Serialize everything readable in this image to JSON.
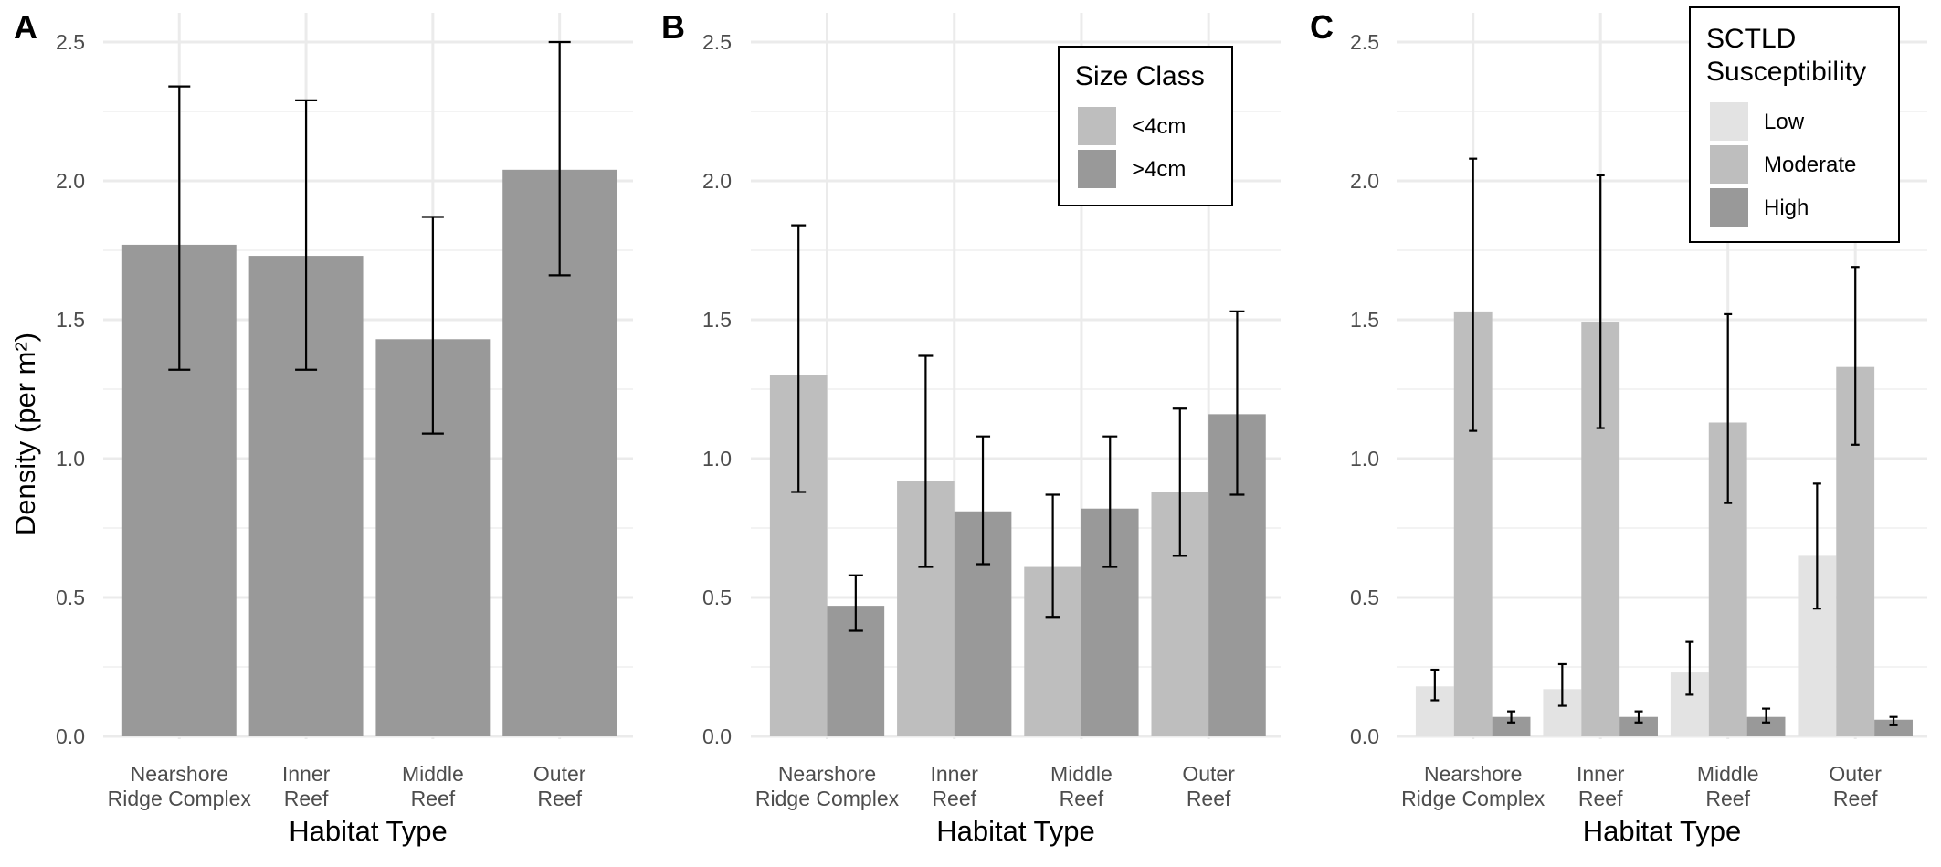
{
  "figure": {
    "y_axis_title": "Density (per m²)",
    "x_axis_title": "Habitat Type"
  },
  "chart_data": [
    {
      "type": "bar",
      "panel_label": "A",
      "xlabel": "Habitat Type",
      "ylabel": "Density (per m²)",
      "ylim": [
        0,
        2.5
      ],
      "yticks": [
        "0.0",
        "0.5",
        "1.0",
        "1.5",
        "2.0",
        "2.5"
      ],
      "grid": true,
      "categories": [
        [
          "Nearshore",
          "Ridge Complex"
        ],
        [
          "Inner",
          "Reef"
        ],
        [
          "Middle",
          "Reef"
        ],
        [
          "Outer",
          "Reef"
        ]
      ],
      "series": [
        {
          "name": "",
          "color": "#999999",
          "values": [
            1.77,
            1.73,
            1.43,
            2.04
          ],
          "err_low": [
            1.32,
            1.32,
            1.09,
            1.66
          ],
          "err_high": [
            2.34,
            2.29,
            1.87,
            2.5
          ]
        }
      ]
    },
    {
      "type": "bar",
      "panel_label": "B",
      "xlabel": "Habitat Type",
      "ylabel": "",
      "ylim": [
        0,
        2.5
      ],
      "yticks": [
        "0.0",
        "0.5",
        "1.0",
        "1.5",
        "2.0",
        "2.5"
      ],
      "grid": true,
      "legend": {
        "title": [
          "Size Class"
        ],
        "position": "top-right"
      },
      "categories": [
        [
          "Nearshore",
          "Ridge Complex"
        ],
        [
          "Inner",
          "Reef"
        ],
        [
          "Middle",
          "Reef"
        ],
        [
          "Outer",
          "Reef"
        ]
      ],
      "series": [
        {
          "name": "<4cm",
          "color": "#bebebe",
          "values": [
            1.3,
            0.92,
            0.61,
            0.88
          ],
          "err_low": [
            0.88,
            0.61,
            0.43,
            0.65
          ],
          "err_high": [
            1.84,
            1.37,
            0.87,
            1.18
          ]
        },
        {
          "name": ">4cm",
          "color": "#999999",
          "values": [
            0.47,
            0.81,
            0.82,
            1.16
          ],
          "err_low": [
            0.38,
            0.62,
            0.61,
            0.87
          ],
          "err_high": [
            0.58,
            1.08,
            1.08,
            1.53
          ]
        }
      ]
    },
    {
      "type": "bar",
      "panel_label": "C",
      "xlabel": "Habitat Type",
      "ylabel": "",
      "ylim": [
        0,
        2.5
      ],
      "yticks": [
        "0.0",
        "0.5",
        "1.0",
        "1.5",
        "2.0",
        "2.5"
      ],
      "grid": true,
      "legend": {
        "title": [
          "SCTLD",
          "Susceptibility"
        ],
        "position": "top-right"
      },
      "categories": [
        [
          "Nearshore",
          "Ridge Complex"
        ],
        [
          "Inner",
          "Reef"
        ],
        [
          "Middle",
          "Reef"
        ],
        [
          "Outer",
          "Reef"
        ]
      ],
      "series": [
        {
          "name": "Low",
          "color": "#e3e3e3",
          "values": [
            0.18,
            0.17,
            0.23,
            0.65
          ],
          "err_low": [
            0.13,
            0.11,
            0.15,
            0.46
          ],
          "err_high": [
            0.24,
            0.26,
            0.34,
            0.91
          ]
        },
        {
          "name": "Moderate",
          "color": "#bebebe",
          "values": [
            1.53,
            1.49,
            1.13,
            1.33
          ],
          "err_low": [
            1.1,
            1.11,
            0.84,
            1.05
          ],
          "err_high": [
            2.08,
            2.02,
            1.52,
            1.69
          ]
        },
        {
          "name": "High",
          "color": "#999999",
          "values": [
            0.07,
            0.07,
            0.07,
            0.06
          ],
          "err_low": [
            0.05,
            0.05,
            0.05,
            0.04
          ],
          "err_high": [
            0.09,
            0.09,
            0.1,
            0.07
          ]
        }
      ]
    }
  ]
}
